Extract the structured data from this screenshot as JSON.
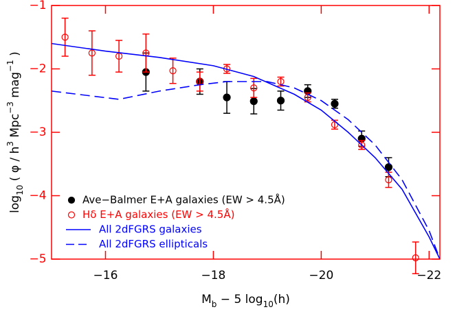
{
  "chart_data": {
    "type": "scatter",
    "x_label": [
      {
        "text": "M"
      },
      {
        "text": "b",
        "shift": "sub"
      },
      {
        "text": " − 5 log"
      },
      {
        "text": "10",
        "shift": "sub"
      },
      {
        "text": "(h)"
      }
    ],
    "y_label": [
      {
        "text": "log"
      },
      {
        "text": "10",
        "shift": "sub"
      },
      {
        "text": " ( φ / h"
      },
      {
        "text": "3",
        "shift": "super"
      },
      {
        "text": " Mpc"
      },
      {
        "text": "−3",
        "shift": "super"
      },
      {
        "text": " mag"
      },
      {
        "text": "−1",
        "shift": "super"
      },
      {
        "text": " )"
      }
    ],
    "xlim": [
      -15,
      -22.2
    ],
    "ylim": [
      -5,
      -1
    ],
    "xticks": [
      {
        "value": -16,
        "label": "−16"
      },
      {
        "value": -18,
        "label": "−18"
      },
      {
        "value": -20,
        "label": "−20"
      },
      {
        "value": -22,
        "label": "−22"
      }
    ],
    "yticks": [
      {
        "value": -1,
        "label": "−1"
      },
      {
        "value": -2,
        "label": "−2"
      },
      {
        "value": -3,
        "label": "−3"
      },
      {
        "value": -4,
        "label": "−4"
      },
      {
        "value": -5,
        "label": "−5"
      }
    ],
    "axis_color": "#ff0000",
    "legend": "lower left",
    "series": [
      {
        "name": "Ave−Balmer E+A galaxies (EW > 4.5Å)",
        "color": "#000000",
        "marker": "filled",
        "x": [
          -16.75,
          -17.75,
          -18.25,
          -18.75,
          -19.25,
          -19.75,
          -20.25,
          -20.75,
          -21.25
        ],
        "values": [
          -2.05,
          -2.2,
          -2.45,
          -2.51,
          -2.5,
          -2.35,
          -2.55,
          -3.1,
          -3.55
        ],
        "errors": [
          0.3,
          0.2,
          0.25,
          0.2,
          0.15,
          0.1,
          0.07,
          0.12,
          0.15
        ]
      },
      {
        "name": "Hδ E+A galaxies (EW > 4.5Å)",
        "color": "#ff0000",
        "marker": "open",
        "x": [
          -15.25,
          -15.75,
          -16.25,
          -16.75,
          -17.25,
          -17.75,
          -18.25,
          -18.75,
          -19.25,
          -19.75,
          -20.25,
          -20.75,
          -21.25,
          -21.75
        ],
        "values": [
          -1.5,
          -1.75,
          -1.8,
          -1.75,
          -2.03,
          -2.2,
          -2.0,
          -2.3,
          -2.2,
          -2.45,
          -2.88,
          -3.2,
          -3.75,
          -4.98
        ],
        "errors": [
          0.3,
          0.35,
          0.25,
          0.3,
          0.2,
          0.15,
          0.07,
          0.15,
          0.07,
          0.07,
          0.07,
          0.07,
          0.12,
          0.25
        ]
      },
      {
        "name": "All 2dFGRS galaxies",
        "color": "#0000ff",
        "style": "solid",
        "x": [
          -15,
          -16,
          -17,
          -18,
          -18.75,
          -19.5,
          -20,
          -20.5,
          -21,
          -21.5,
          -22,
          -22.2
        ],
        "values": [
          -1.6,
          -1.72,
          -1.82,
          -1.95,
          -2.12,
          -2.4,
          -2.65,
          -3.0,
          -3.4,
          -3.9,
          -4.65,
          -5.0
        ]
      },
      {
        "name": "All 2dFGRS ellipticals",
        "color": "#0000ff",
        "style": "dashed",
        "x": [
          -15,
          -16.25,
          -17,
          -17.75,
          -18.25,
          -19,
          -19.5,
          -20,
          -20.5,
          -21,
          -21.5,
          -22,
          -22.2
        ],
        "values": [
          -2.35,
          -2.48,
          -2.35,
          -2.25,
          -2.2,
          -2.2,
          -2.3,
          -2.5,
          -2.8,
          -3.2,
          -3.75,
          -4.55,
          -5.0
        ]
      }
    ]
  }
}
